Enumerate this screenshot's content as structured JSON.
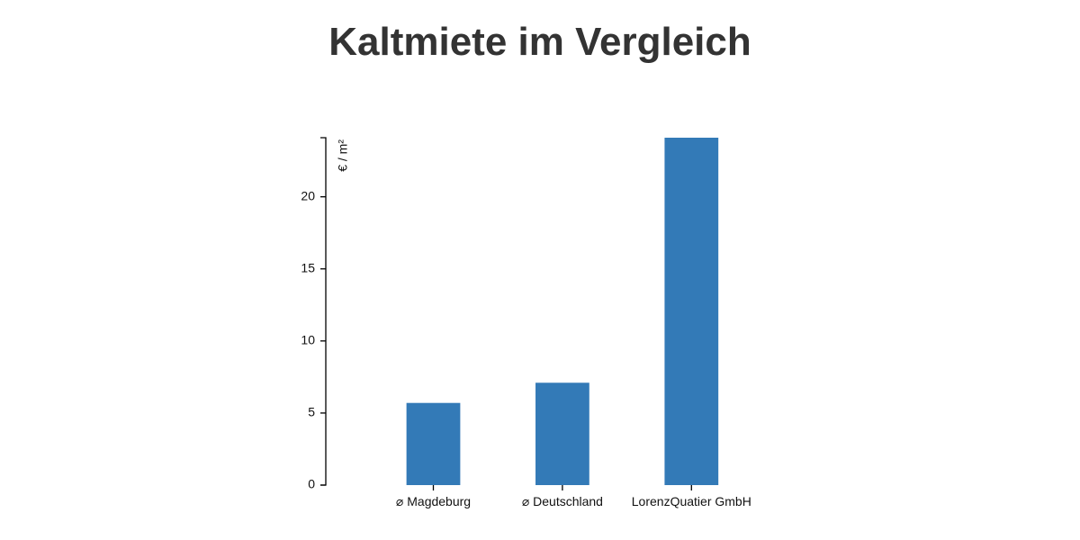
{
  "chart_data": {
    "type": "bar",
    "title": "Kaltmiete im Vergleich",
    "ylabel": "€ / m²",
    "xlabel": "",
    "categories": [
      "⌀ Magdeburg",
      "⌀ Deutschland",
      "LorenzQuatier GmbH"
    ],
    "values": [
      5.7,
      7.1,
      24.1
    ],
    "ylim": [
      0,
      24.1
    ],
    "yticks": [
      0,
      5,
      10,
      15,
      20
    ],
    "bar_color": "#337ab7",
    "grid": false,
    "legend": false
  }
}
